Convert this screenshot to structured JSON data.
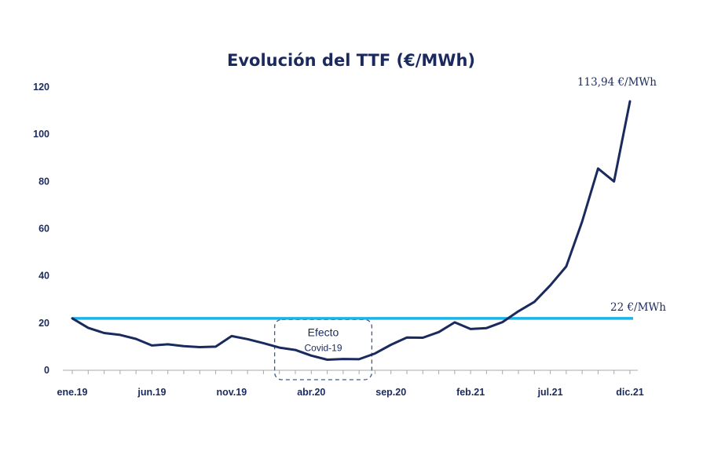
{
  "chart_data": {
    "type": "line",
    "title": "Evolución del TTF (€/MWh)",
    "xlabel": "",
    "ylabel": "",
    "ylim": [
      0,
      120
    ],
    "yticks": [
      0,
      20,
      40,
      60,
      80,
      100,
      120
    ],
    "x_tick_labels": [
      {
        "label": "ene.19",
        "index": 0
      },
      {
        "label": "jun.19",
        "index": 5
      },
      {
        "label": "nov.19",
        "index": 10
      },
      {
        "label": "abr.20",
        "index": 15
      },
      {
        "label": "sep.20",
        "index": 20
      },
      {
        "label": "feb.21",
        "index": 25
      },
      {
        "label": "jul.21",
        "index": 30
      },
      {
        "label": "dic.21",
        "index": 35
      }
    ],
    "series": [
      {
        "name": "TTF",
        "color": "#1b2a5e",
        "values": [
          22,
          18,
          15.8,
          15,
          13.3,
          10.5,
          11,
          10.2,
          9.8,
          10,
          14.5,
          13.2,
          11.5,
          9.6,
          8.6,
          6.2,
          4.5,
          4.8,
          4.7,
          7.1,
          10.8,
          13.9,
          13.8,
          16.2,
          20.3,
          17.5,
          17.9,
          20.4,
          25,
          29,
          36,
          44,
          63,
          85.5,
          80,
          113.94
        ]
      }
    ],
    "reference_line": {
      "value": 22,
      "label": "22 €/MWh",
      "color": "#1ab4e6"
    },
    "annotations": {
      "last_value_label": "113,94 €/MWh",
      "covid_box_line1": "Efecto",
      "covid_box_line2": "Covid-19",
      "covid_box_start_index": 12.7,
      "covid_box_end_index": 18.8,
      "covid_box_ymin": 0,
      "covid_box_ymax": 21.5
    },
    "colors": {
      "title": "#1b2a5e",
      "text": "#1b2a5e",
      "axis": "#a8a8a8",
      "covid_box": "#3c5a8c"
    },
    "grid": false
  }
}
